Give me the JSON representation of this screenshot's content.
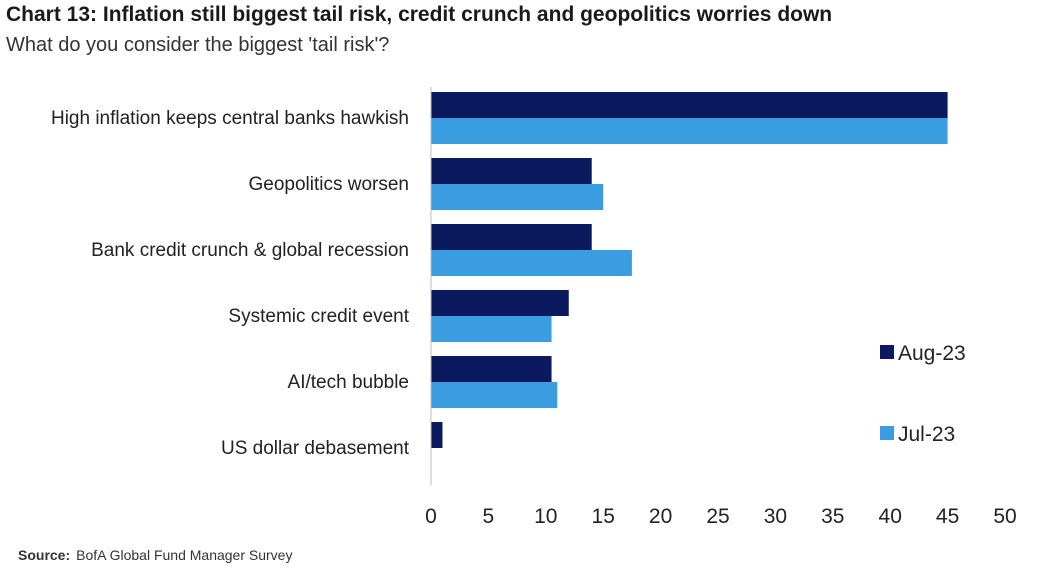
{
  "title": "Chart 13: Inflation still biggest tail risk, credit crunch and geopolitics worries down",
  "subtitle": "What do you consider the biggest 'tail risk'?",
  "source": {
    "label": "Source:",
    "text": "BofA Global Fund Manager Survey"
  },
  "chart_data": {
    "type": "bar",
    "orientation": "horizontal",
    "categories": [
      "High inflation keeps central banks hawkish",
      "Geopolitics worsen",
      "Bank credit crunch & global recession",
      "Systemic credit event",
      "AI/tech bubble",
      "US dollar debasement"
    ],
    "series": [
      {
        "name": "Aug-23",
        "color": "#0b1a5e",
        "values": [
          45,
          14,
          14,
          12,
          10.5,
          1
        ]
      },
      {
        "name": "Jul-23",
        "color": "#3a9de0",
        "values": [
          45,
          15,
          17.5,
          10.5,
          11,
          0
        ]
      }
    ],
    "xlim": [
      0,
      50
    ],
    "xticks": [
      0,
      5,
      10,
      15,
      20,
      25,
      30,
      35,
      40,
      45,
      50
    ],
    "grid": false,
    "legend_position": "right"
  }
}
